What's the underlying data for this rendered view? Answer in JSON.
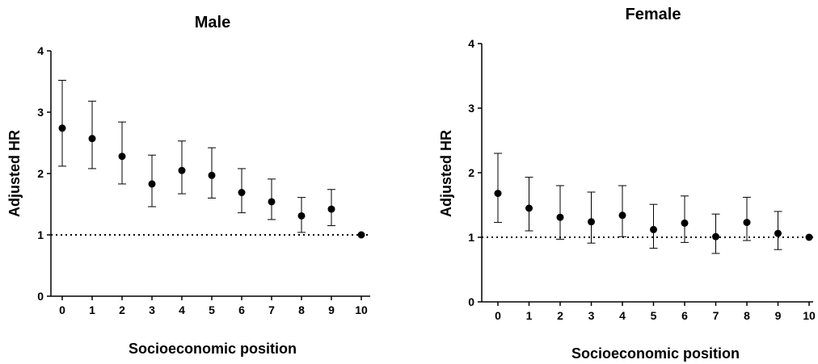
{
  "chart_data": [
    {
      "type": "scatter",
      "title": "Male",
      "xlabel": "Socioeconomic position",
      "ylabel": "Adjusted HR",
      "x": [
        0,
        1,
        2,
        3,
        4,
        5,
        6,
        7,
        8,
        9,
        10
      ],
      "x_tick_labels": [
        "0",
        "1",
        "2",
        "3",
        "4",
        "5",
        "6",
        "7",
        "8",
        "9",
        "10"
      ],
      "y_tick_labels": [
        "0",
        "1",
        "2",
        "3",
        "4"
      ],
      "ylim": [
        0,
        4
      ],
      "reference_line": 1,
      "grid": false,
      "series": [
        {
          "values": [
            2.74,
            2.57,
            2.28,
            1.83,
            2.05,
            1.97,
            1.69,
            1.54,
            1.31,
            1.42,
            1.0
          ],
          "ci_lower": [
            2.12,
            2.08,
            1.83,
            1.46,
            1.67,
            1.6,
            1.36,
            1.25,
            1.04,
            1.15,
            1.0
          ],
          "ci_upper": [
            3.52,
            3.18,
            2.84,
            2.3,
            2.53,
            2.42,
            2.08,
            1.91,
            1.61,
            1.74,
            1.0
          ]
        }
      ]
    },
    {
      "type": "scatter",
      "title": "Female",
      "xlabel": "Socioeconomic position",
      "ylabel": "Adjusted HR",
      "x": [
        0,
        1,
        2,
        3,
        4,
        5,
        6,
        7,
        8,
        9,
        10
      ],
      "x_tick_labels": [
        "0",
        "1",
        "2",
        "3",
        "4",
        "5",
        "6",
        "7",
        "8",
        "9",
        "10"
      ],
      "y_tick_labels": [
        "0",
        "1",
        "2",
        "3",
        "4"
      ],
      "ylim": [
        0,
        4
      ],
      "reference_line": 1,
      "grid": false,
      "series": [
        {
          "values": [
            1.68,
            1.45,
            1.31,
            1.24,
            1.34,
            1.12,
            1.22,
            1.01,
            1.23,
            1.06,
            1.0
          ],
          "ci_lower": [
            1.23,
            1.1,
            0.97,
            0.91,
            1.01,
            0.83,
            0.92,
            0.75,
            0.95,
            0.81,
            1.0
          ],
          "ci_upper": [
            2.3,
            1.93,
            1.8,
            1.7,
            1.8,
            1.51,
            1.64,
            1.36,
            1.62,
            1.4,
            1.0
          ]
        }
      ]
    }
  ]
}
